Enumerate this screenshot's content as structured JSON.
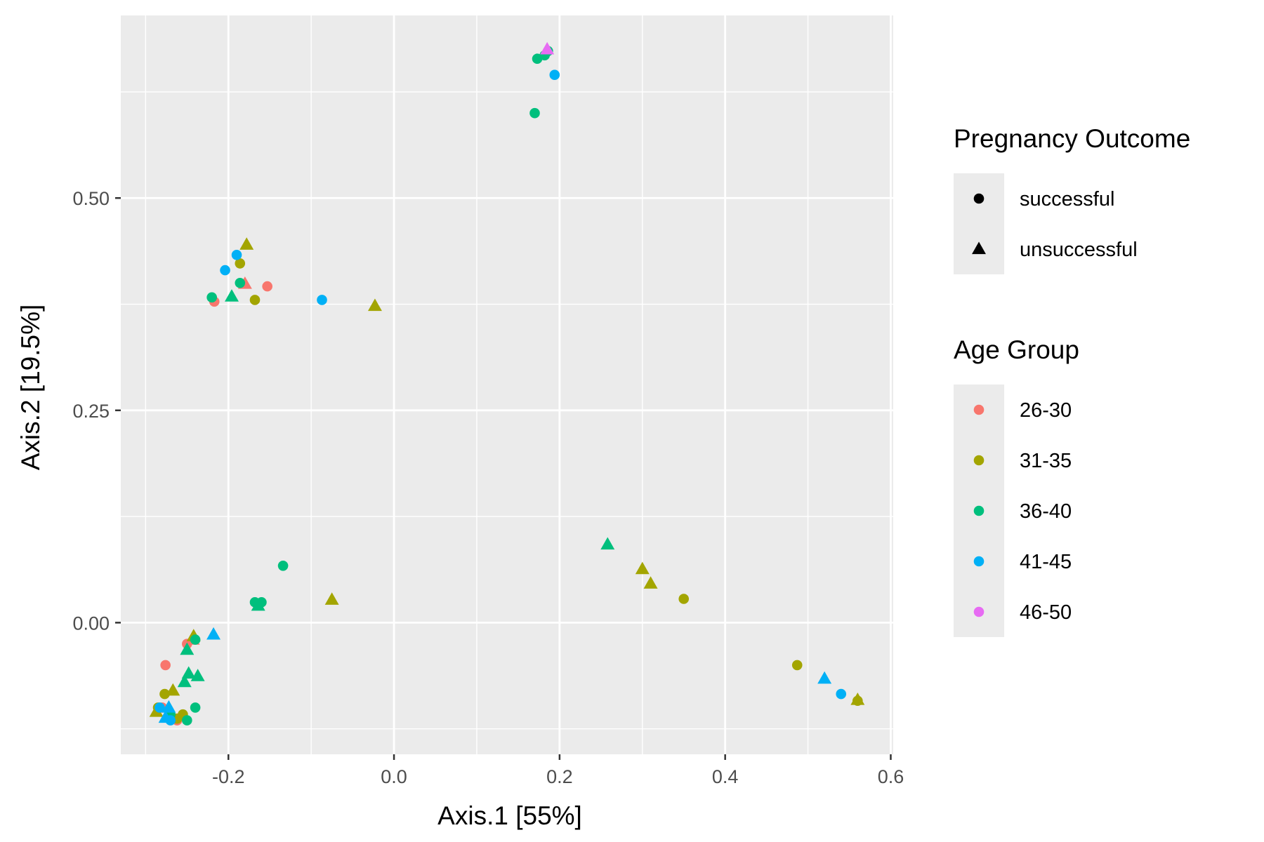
{
  "chart_data": {
    "type": "scatter",
    "xlabel": "Axis.1   [55%]",
    "ylabel": "Axis.2   [19.5%]",
    "xlim": [
      -0.33,
      0.603
    ],
    "ylim": [
      -0.155,
      0.715
    ],
    "x_ticks": [
      -0.2,
      0.0,
      0.2,
      0.4,
      0.6
    ],
    "x_tick_labels": [
      "-0.2",
      "0.0",
      "0.2",
      "0.4",
      "0.6"
    ],
    "x_minor_ticks": [
      -0.3,
      -0.1,
      0.1,
      0.3,
      0.5
    ],
    "y_ticks": [
      0.0,
      0.25,
      0.5
    ],
    "y_tick_labels": [
      "0.00",
      "0.25",
      "0.50"
    ],
    "y_minor_ticks": [
      -0.125,
      0.125,
      0.375,
      0.625
    ],
    "grid": true,
    "background": "#ebebeb",
    "legend_position": "right",
    "legends": [
      {
        "title": "Pregnancy Outcome",
        "kind": "shape",
        "entries": [
          {
            "label": "successful",
            "shape": "circle"
          },
          {
            "label": "unsuccessful",
            "shape": "triangle"
          }
        ]
      },
      {
        "title": "Age Group",
        "kind": "color",
        "entries": [
          {
            "label": "26-30",
            "color": "#F8766D"
          },
          {
            "label": "31-35",
            "color": "#A3A500"
          },
          {
            "label": "36-40",
            "color": "#00BF7D"
          },
          {
            "label": "41-45",
            "color": "#00B0F6"
          },
          {
            "label": "46-50",
            "color": "#E76BF3"
          }
        ]
      }
    ],
    "series": [
      {
        "name": "26-30",
        "color": "#F8766D",
        "points": [
          {
            "x": -0.217,
            "y": 0.378,
            "shape": "circle"
          },
          {
            "x": -0.153,
            "y": 0.396,
            "shape": "circle"
          },
          {
            "x": -0.18,
            "y": 0.399,
            "shape": "triangle"
          },
          {
            "x": -0.276,
            "y": -0.05,
            "shape": "circle"
          },
          {
            "x": -0.25,
            "y": -0.025,
            "shape": "circle"
          },
          {
            "x": -0.243,
            "y": -0.02,
            "shape": "triangle"
          },
          {
            "x": -0.28,
            "y": -0.1,
            "shape": "circle"
          },
          {
            "x": -0.262,
            "y": -0.115,
            "shape": "circle"
          }
        ]
      },
      {
        "name": "31-35",
        "color": "#A3A500",
        "points": [
          {
            "x": -0.178,
            "y": 0.445,
            "shape": "triangle"
          },
          {
            "x": -0.186,
            "y": 0.423,
            "shape": "circle"
          },
          {
            "x": -0.168,
            "y": 0.38,
            "shape": "circle"
          },
          {
            "x": -0.023,
            "y": 0.373,
            "shape": "triangle"
          },
          {
            "x": -0.075,
            "y": 0.027,
            "shape": "triangle"
          },
          {
            "x": 0.3,
            "y": 0.063,
            "shape": "triangle"
          },
          {
            "x": 0.31,
            "y": 0.046,
            "shape": "triangle"
          },
          {
            "x": 0.35,
            "y": 0.028,
            "shape": "circle"
          },
          {
            "x": 0.487,
            "y": -0.05,
            "shape": "circle"
          },
          {
            "x": 0.56,
            "y": -0.091,
            "shape": "triangle"
          },
          {
            "x": 0.56,
            "y": -0.092,
            "shape": "circle"
          },
          {
            "x": -0.242,
            "y": -0.016,
            "shape": "triangle"
          },
          {
            "x": -0.277,
            "y": -0.084,
            "shape": "circle"
          },
          {
            "x": -0.267,
            "y": -0.08,
            "shape": "triangle"
          },
          {
            "x": -0.285,
            "y": -0.1,
            "shape": "circle"
          },
          {
            "x": -0.287,
            "y": -0.105,
            "shape": "triangle"
          },
          {
            "x": -0.262,
            "y": -0.113,
            "shape": "circle"
          },
          {
            "x": -0.255,
            "y": -0.108,
            "shape": "circle"
          }
        ]
      },
      {
        "name": "36-40",
        "color": "#00BF7D",
        "points": [
          {
            "x": 0.173,
            "y": 0.664,
            "shape": "circle"
          },
          {
            "x": 0.182,
            "y": 0.668,
            "shape": "circle"
          },
          {
            "x": 0.186,
            "y": 0.673,
            "shape": "circle"
          },
          {
            "x": 0.17,
            "y": 0.6,
            "shape": "circle"
          },
          {
            "x": -0.22,
            "y": 0.383,
            "shape": "circle"
          },
          {
            "x": -0.196,
            "y": 0.384,
            "shape": "triangle"
          },
          {
            "x": -0.186,
            "y": 0.4,
            "shape": "circle"
          },
          {
            "x": -0.134,
            "y": 0.067,
            "shape": "circle"
          },
          {
            "x": 0.258,
            "y": 0.092,
            "shape": "triangle"
          },
          {
            "x": -0.168,
            "y": 0.024,
            "shape": "circle"
          },
          {
            "x": -0.16,
            "y": 0.024,
            "shape": "circle"
          },
          {
            "x": -0.164,
            "y": 0.02,
            "shape": "triangle"
          },
          {
            "x": -0.24,
            "y": -0.02,
            "shape": "circle"
          },
          {
            "x": -0.25,
            "y": -0.032,
            "shape": "triangle"
          },
          {
            "x": -0.248,
            "y": -0.06,
            "shape": "triangle"
          },
          {
            "x": -0.237,
            "y": -0.063,
            "shape": "triangle"
          },
          {
            "x": -0.253,
            "y": -0.07,
            "shape": "triangle"
          },
          {
            "x": -0.24,
            "y": -0.1,
            "shape": "circle"
          },
          {
            "x": -0.25,
            "y": -0.115,
            "shape": "circle"
          },
          {
            "x": -0.27,
            "y": -0.108,
            "shape": "circle"
          }
        ]
      },
      {
        "name": "41-45",
        "color": "#00B0F6",
        "points": [
          {
            "x": 0.194,
            "y": 0.645,
            "shape": "circle"
          },
          {
            "x": -0.19,
            "y": 0.433,
            "shape": "circle"
          },
          {
            "x": -0.204,
            "y": 0.415,
            "shape": "circle"
          },
          {
            "x": -0.087,
            "y": 0.38,
            "shape": "circle"
          },
          {
            "x": -0.218,
            "y": -0.014,
            "shape": "triangle"
          },
          {
            "x": 0.52,
            "y": -0.066,
            "shape": "triangle"
          },
          {
            "x": 0.54,
            "y": -0.084,
            "shape": "circle"
          },
          {
            "x": -0.283,
            "y": -0.1,
            "shape": "circle"
          },
          {
            "x": -0.272,
            "y": -0.1,
            "shape": "triangle"
          },
          {
            "x": -0.27,
            "y": -0.115,
            "shape": "circle"
          },
          {
            "x": -0.276,
            "y": -0.112,
            "shape": "triangle"
          }
        ]
      },
      {
        "name": "46-50",
        "color": "#E76BF3",
        "points": [
          {
            "x": 0.185,
            "y": 0.675,
            "shape": "triangle"
          }
        ]
      }
    ]
  }
}
